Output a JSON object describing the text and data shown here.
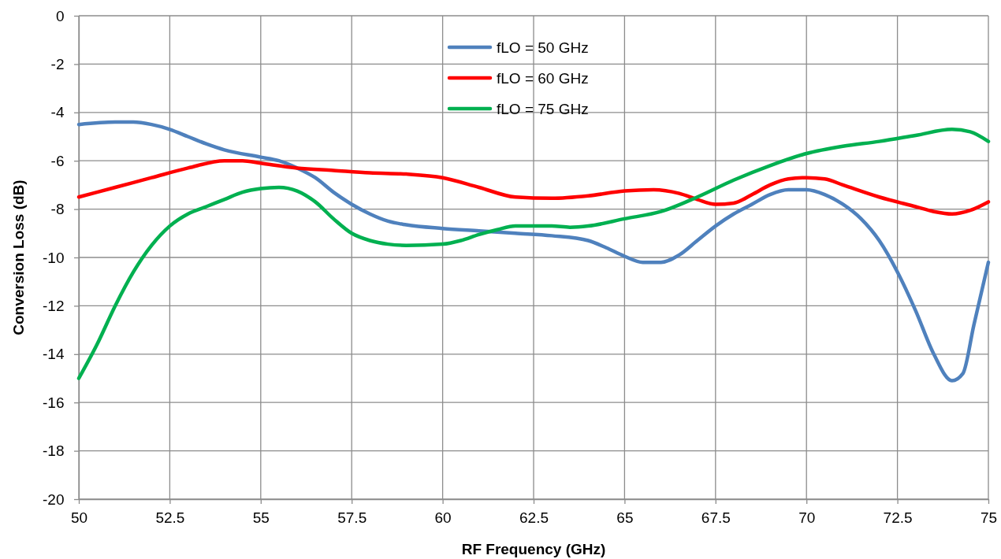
{
  "chart_data": {
    "type": "line",
    "xlabel": "RF Frequency (GHz)",
    "ylabel": "Conversion Loss (dB)",
    "xlim": [
      50,
      75
    ],
    "xticks": [
      50,
      {
        "value": 52.5,
        "label": "52.5"
      },
      55,
      {
        "value": 57.5,
        "label": "57.5"
      },
      60,
      {
        "value": 62.5,
        "label": "62.5"
      },
      65,
      {
        "value": 67.5,
        "label": "67.5"
      },
      70,
      {
        "value": 72.5,
        "label": "72.5"
      },
      75
    ],
    "ylim": [
      -20,
      0
    ],
    "yticks": [
      -20,
      -18,
      -16,
      -14,
      -12,
      -10,
      -8,
      -6,
      -4,
      -2,
      0
    ],
    "grid": true,
    "legend": "top",
    "marker": "none",
    "line_style": "solid",
    "series": [
      {
        "name": "fLO = 50 GHz",
        "color": "#4f81bd",
        "x": [
          50,
          51,
          51.5,
          52,
          52.5,
          53,
          53.5,
          54,
          55,
          55.5,
          56,
          56.5,
          57,
          57.5,
          58,
          58.5,
          59,
          60,
          61,
          62,
          63,
          64,
          64.5,
          65,
          65.5,
          66,
          66.5,
          67,
          67.5,
          68,
          68.5,
          69,
          69.5,
          70,
          70.5,
          71,
          71.5,
          72,
          72.5,
          73,
          73.5,
          74,
          74.3,
          74.6,
          75
        ],
        "values": [
          -4.5,
          -4.4,
          -4.4,
          -4.5,
          -4.7,
          -5.0,
          -5.3,
          -5.55,
          -5.85,
          -6.0,
          -6.3,
          -6.7,
          -7.3,
          -7.8,
          -8.2,
          -8.5,
          -8.65,
          -8.8,
          -8.9,
          -9.0,
          -9.1,
          -9.3,
          -9.6,
          -9.95,
          -10.2,
          -10.2,
          -9.9,
          -9.3,
          -8.7,
          -8.2,
          -7.8,
          -7.4,
          -7.2,
          -7.2,
          -7.4,
          -7.8,
          -8.4,
          -9.3,
          -10.6,
          -12.2,
          -14.0,
          -15.1,
          -14.8,
          -12.8,
          -10.2
        ]
      },
      {
        "name": "fLO = 60 GHz",
        "color": "#ff0000",
        "x": [
          50,
          51,
          52,
          53,
          54,
          54.5,
          55,
          56,
          57,
          58,
          59,
          60,
          61,
          62,
          63,
          64,
          65,
          65.8,
          66.5,
          67,
          67.5,
          68,
          68.5,
          69,
          69.5,
          70,
          70.5,
          71,
          72,
          73,
          73.5,
          74,
          74.5,
          75
        ],
        "values": [
          -7.5,
          -7.1,
          -6.7,
          -6.3,
          -6.0,
          -6.0,
          -6.1,
          -6.3,
          -6.4,
          -6.5,
          -6.55,
          -6.7,
          -7.1,
          -7.5,
          -7.55,
          -7.45,
          -7.25,
          -7.2,
          -7.35,
          -7.6,
          -7.8,
          -7.75,
          -7.4,
          -7.0,
          -6.75,
          -6.7,
          -6.75,
          -7.0,
          -7.5,
          -7.9,
          -8.1,
          -8.2,
          -8.05,
          -7.7
        ]
      },
      {
        "name": "fLO = 75 GHz",
        "color": "#00b050",
        "x": [
          50,
          50.5,
          51,
          51.5,
          52,
          52.5,
          53,
          53.5,
          54,
          54.5,
          55,
          55.5,
          56,
          56.5,
          57,
          57.5,
          58,
          58.5,
          59,
          60,
          60.5,
          61,
          61.5,
          62,
          63,
          63.5,
          64,
          65,
          66,
          67,
          68,
          69,
          70,
          71,
          72,
          73,
          74,
          74.5,
          75
        ],
        "values": [
          -15.0,
          -13.6,
          -12.0,
          -10.6,
          -9.5,
          -8.7,
          -8.2,
          -7.9,
          -7.6,
          -7.3,
          -7.15,
          -7.1,
          -7.25,
          -7.7,
          -8.4,
          -9.0,
          -9.3,
          -9.45,
          -9.5,
          -9.45,
          -9.3,
          -9.05,
          -8.85,
          -8.7,
          -8.7,
          -8.75,
          -8.7,
          -8.4,
          -8.1,
          -7.5,
          -6.8,
          -6.2,
          -5.7,
          -5.4,
          -5.2,
          -4.95,
          -4.7,
          -4.8,
          -5.2
        ]
      }
    ]
  }
}
